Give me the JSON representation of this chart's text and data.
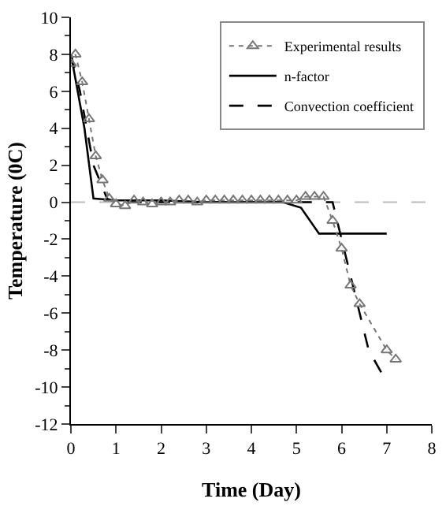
{
  "chart_data": {
    "type": "line",
    "xlabel": "Time (Day)",
    "ylabel": "Temperature (0C)",
    "xlim": [
      0,
      8
    ],
    "xticks": [
      0,
      1,
      2,
      3,
      4,
      5,
      6,
      7,
      8
    ],
    "ylim": [
      -12,
      10
    ],
    "yticks": [
      -12,
      -10,
      -8,
      -6,
      -4,
      -2,
      0,
      2,
      4,
      6,
      8,
      10
    ],
    "grid": false,
    "legend": "top right",
    "ref_lines": [
      {
        "axis": "y",
        "value": 0,
        "label": null,
        "color": "#bbbbbb",
        "line_style": "dashed"
      }
    ],
    "series": [
      {
        "name": "Experimental results",
        "color": "#777777",
        "marker": "triangle",
        "line_style": "dotted",
        "x": [
          0,
          0.1,
          0.25,
          0.4,
          0.55,
          0.7,
          0.85,
          1.0,
          1.2,
          1.4,
          1.6,
          1.8,
          2.0,
          2.2,
          2.4,
          2.6,
          2.8,
          3.0,
          3.2,
          3.4,
          3.6,
          3.8,
          4.0,
          4.2,
          4.4,
          4.6,
          4.8,
          5.0,
          5.2,
          5.4,
          5.6,
          5.8,
          6.0,
          6.2,
          6.4,
          7.0,
          7.2
        ],
        "values": [
          7.5,
          8,
          6.5,
          4.5,
          2.5,
          1.2,
          0.2,
          -0.1,
          -0.2,
          0.1,
          0.0,
          -0.1,
          0.0,
          0.0,
          0.1,
          0.1,
          0.0,
          0.1,
          0.1,
          0.1,
          0.1,
          0.1,
          0.1,
          0.1,
          0.1,
          0.1,
          0.1,
          0.1,
          0.3,
          0.3,
          0.3,
          -1.0,
          -2.5,
          -4.5,
          -5.5,
          -8.0,
          -8.5
        ]
      },
      {
        "name": "n-factor",
        "color": "#000000",
        "marker": "none",
        "line_style": "solid",
        "x": [
          0,
          0.3,
          0.5,
          1.0,
          2.0,
          3.0,
          4.0,
          4.7,
          5.1,
          5.5,
          7.0
        ],
        "values": [
          8,
          4,
          0.2,
          0.1,
          0.1,
          0.0,
          0.0,
          0.0,
          -0.3,
          -1.7,
          -1.7
        ]
      },
      {
        "name": "Convection coefficient",
        "color": "#000000",
        "marker": "none",
        "line_style": "dashed",
        "x": [
          0,
          0.2,
          0.5,
          0.8,
          1.0,
          2.0,
          3.0,
          4.0,
          5.0,
          5.8,
          6.0,
          6.3,
          6.6,
          6.9
        ],
        "values": [
          8,
          6,
          2,
          0.2,
          0.0,
          0.0,
          0.0,
          0.0,
          0.0,
          0.0,
          -2.0,
          -5.0,
          -8.0,
          -9.3
        ]
      }
    ]
  }
}
